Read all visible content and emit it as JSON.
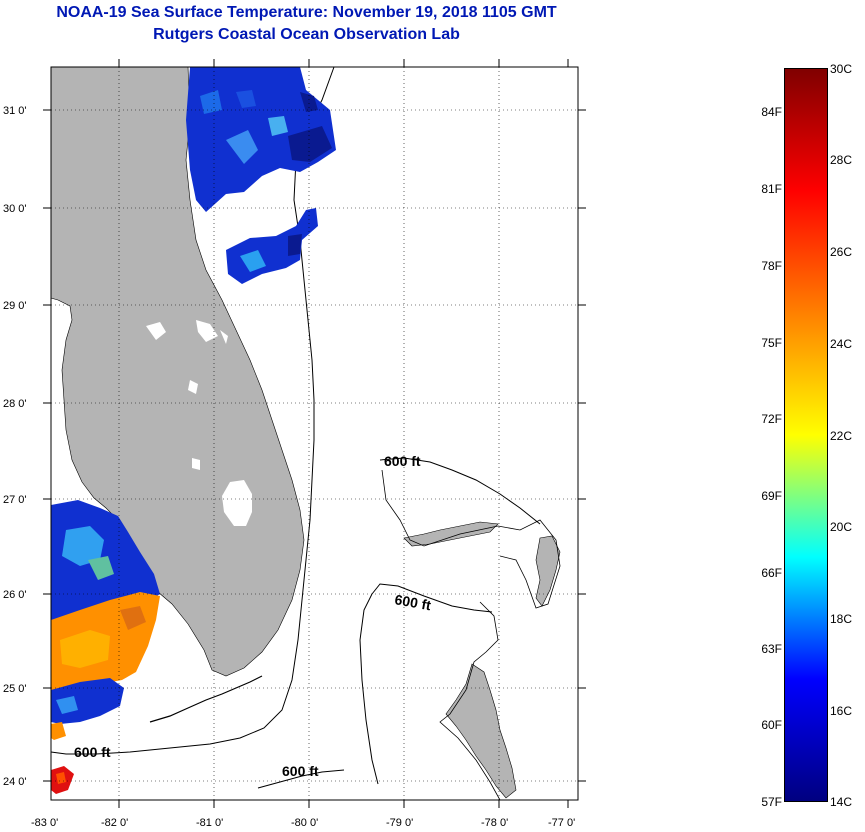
{
  "header": {
    "title": "NOAA-19 Sea Surface Temperature:  November 19, 2018 1105 GMT",
    "subtitle": "Rutgers Coastal Ocean Observation Lab"
  },
  "map": {
    "lat_labels": [
      "31 0'",
      "30 0'",
      "29 0'",
      "28 0'",
      "27 0'",
      "26 0'",
      "25 0'",
      "24 0'"
    ],
    "lon_labels": [
      "-83 0'",
      "-82 0'",
      "-81 0'",
      "-80 0'",
      "-79 0'",
      "-78 0'",
      "-77 0'"
    ],
    "contour_labels": [
      "600 ft",
      "600 ft",
      "600 ft",
      "600 ft"
    ]
  },
  "colorbar": {
    "fahrenheit": [
      "84F",
      "81F",
      "78F",
      "75F",
      "72F",
      "69F",
      "66F",
      "63F",
      "60F",
      "57F"
    ],
    "celsius": [
      "30C",
      "28C",
      "26C",
      "24C",
      "22C",
      "20C",
      "18C",
      "16C",
      "14C"
    ],
    "colors": {
      "hot": "#800000",
      "red": "#ff0000",
      "orange": "#ff8000",
      "yellow": "#ffff00",
      "cyan": "#00ffff",
      "blue": "#0000ff",
      "cold": "#000080"
    }
  },
  "palette": {
    "land": "#b4b4b4",
    "title": "#0018b4"
  }
}
